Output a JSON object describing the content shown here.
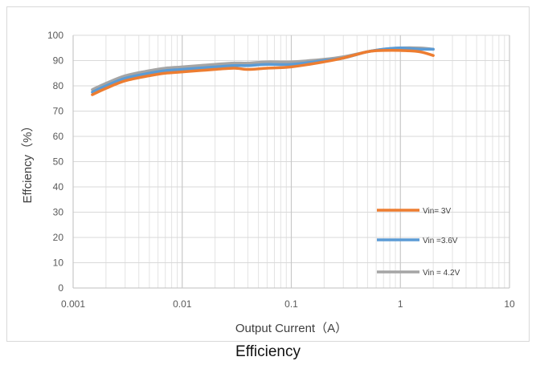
{
  "caption": "Efficiency",
  "chart_data": {
    "type": "line",
    "title": "",
    "xlabel": "Output Current（A）",
    "ylabel": "Effciency（%）",
    "xscale": "log",
    "xlim": [
      0.001,
      10
    ],
    "ylim": [
      0,
      100
    ],
    "xticks": [
      "0.001",
      "0.01",
      "0.1",
      "1",
      "10"
    ],
    "yticks": [
      "0",
      "10",
      "20",
      "30",
      "40",
      "50",
      "60",
      "70",
      "80",
      "90",
      "100"
    ],
    "grid": true,
    "legend": "right-bottom",
    "series": [
      {
        "name": "Vin= 3V",
        "color": "#ed7d31",
        "x": [
          0.0015,
          0.002,
          0.003,
          0.005,
          0.007,
          0.01,
          0.02,
          0.03,
          0.04,
          0.06,
          0.1,
          0.2,
          0.3,
          0.5,
          0.7,
          1.0,
          1.5,
          2.0
        ],
        "y": [
          76.5,
          79,
          82,
          84,
          85,
          85.5,
          86.5,
          87,
          86.5,
          87,
          87.5,
          89.5,
          91,
          93.5,
          94,
          94,
          93.5,
          92
        ]
      },
      {
        "name": "Vin =3.6V",
        "color": "#5b9bd5",
        "x": [
          0.0015,
          0.002,
          0.003,
          0.005,
          0.007,
          0.01,
          0.02,
          0.03,
          0.04,
          0.06,
          0.1,
          0.2,
          0.3,
          0.5,
          0.7,
          1.0,
          1.5,
          2.0
        ],
        "y": [
          77.5,
          80,
          83,
          85,
          86,
          86.5,
          87.5,
          88,
          88,
          88.5,
          88.5,
          90,
          91,
          93.5,
          94.5,
          95,
          94.5,
          94.5
        ]
      },
      {
        "name": "Vin = 4.2V",
        "color": "#a5a5a5",
        "x": [
          0.0015,
          0.002,
          0.003,
          0.005,
          0.007,
          0.01,
          0.02,
          0.03,
          0.04,
          0.06,
          0.1,
          0.2,
          0.3,
          0.5,
          0.7,
          1.0,
          1.5,
          2.0
        ],
        "y": [
          78.5,
          81,
          84,
          86,
          87,
          87.5,
          88.5,
          89,
          89,
          89.5,
          89.5,
          90.5,
          91.5,
          93.5,
          94.5,
          95,
          95,
          94.5
        ]
      }
    ]
  }
}
